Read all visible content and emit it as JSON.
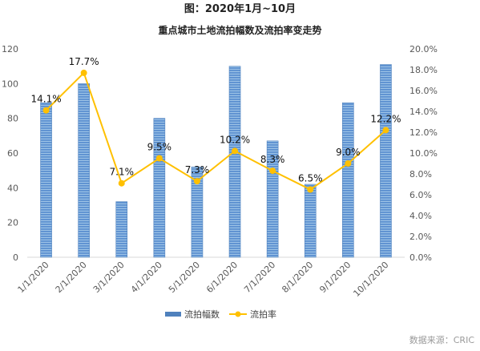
{
  "title": "图：2020年1月~10月",
  "subtitle": "重点城市土地流拍幅数及流拍率变走势",
  "source": "数据来源：CRIC",
  "colors": {
    "bar": "#4F81BD",
    "bar_light": "#9DC3E6",
    "line": "#FFC000"
  },
  "chart_data": {
    "type": "bar+line",
    "categories": [
      "1/1/2020",
      "2/1/2020",
      "3/1/2020",
      "4/1/2020",
      "5/1/2020",
      "6/1/2020",
      "7/1/2020",
      "8/1/2020",
      "9/1/2020",
      "10/1/2020"
    ],
    "series": [
      {
        "name": "流拍幅数",
        "type": "bar",
        "axis": "left",
        "values": [
          89,
          100,
          32,
          80,
          52,
          110,
          67,
          42,
          89,
          111
        ]
      },
      {
        "name": "流拍率",
        "type": "line",
        "axis": "right",
        "values": [
          14.1,
          17.7,
          7.1,
          9.5,
          7.3,
          10.2,
          8.3,
          6.5,
          9.0,
          12.2
        ],
        "labels": [
          "14.1%",
          "17.7%",
          "7.1%",
          "9.5%",
          "7.3%",
          "10.2%",
          "8.3%",
          "6.5%",
          "9.0%",
          "12.2%"
        ]
      }
    ],
    "y_left": {
      "min": 0,
      "max": 120,
      "ticks": [
        "0",
        "20",
        "40",
        "60",
        "80",
        "100",
        "120"
      ]
    },
    "y_right": {
      "min": 0,
      "max": 20,
      "ticks": [
        "0.0%",
        "2.0%",
        "4.0%",
        "6.0%",
        "8.0%",
        "10.0%",
        "12.0%",
        "14.0%",
        "16.0%",
        "18.0%",
        "20.0%"
      ]
    },
    "legend": {
      "position": "bottom",
      "items": [
        "流拍幅数",
        "流拍率"
      ]
    },
    "grid": false
  }
}
